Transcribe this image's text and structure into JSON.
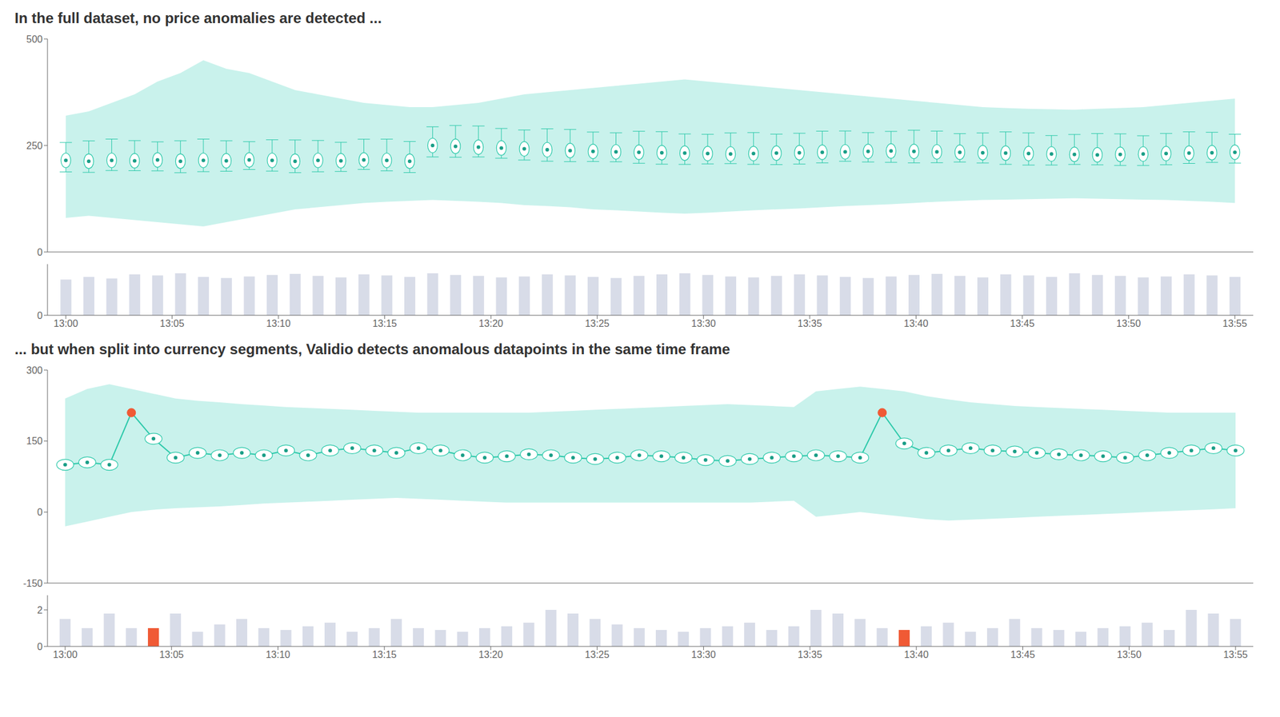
{
  "chart_data": [
    {
      "type": "box",
      "title": "In the full dataset, no price anomalies are detected ...",
      "tick_labels": "y",
      "x": [
        0,
        1,
        2,
        3,
        4,
        5,
        6,
        7,
        8,
        9,
        10,
        11,
        12,
        13,
        14,
        15,
        16,
        17,
        18,
        19,
        20,
        21,
        22,
        23,
        24,
        25,
        26,
        27,
        28,
        29,
        30,
        31,
        32,
        33,
        34,
        35,
        36,
        37,
        38,
        39,
        40,
        41,
        42,
        43,
        44,
        45,
        46,
        47,
        48,
        49,
        50,
        51
      ],
      "xlim": [
        -0.8,
        51.8
      ],
      "ylim": [
        0,
        500
      ],
      "yticks": [
        0,
        250,
        500
      ],
      "series": [
        {
          "type": "band",
          "color": "#b2ece4",
          "lower": [
            80,
            85,
            80,
            75,
            70,
            65,
            60,
            70,
            80,
            90,
            100,
            105,
            110,
            115,
            118,
            120,
            122,
            120,
            118,
            115,
            110,
            108,
            105,
            100,
            98,
            95,
            92,
            90,
            92,
            95,
            98,
            100,
            102,
            105,
            108,
            110,
            112,
            115,
            118,
            120,
            122,
            123,
            124,
            125,
            126,
            125,
            124,
            123,
            122,
            120,
            118,
            115
          ],
          "upper": [
            320,
            330,
            350,
            370,
            400,
            420,
            450,
            430,
            420,
            400,
            380,
            370,
            360,
            350,
            345,
            340,
            340,
            345,
            350,
            360,
            370,
            375,
            380,
            385,
            390,
            395,
            400,
            405,
            400,
            395,
            390,
            385,
            380,
            375,
            370,
            365,
            360,
            355,
            350,
            345,
            340,
            338,
            336,
            335,
            334,
            336,
            338,
            340,
            345,
            350,
            355,
            360
          ]
        },
        {
          "type": "box",
          "color": "#2dc9aa",
          "values": [
            215,
            213,
            215,
            214,
            216,
            213,
            215,
            214,
            216,
            215,
            213,
            215,
            214,
            216,
            215,
            213,
            250,
            248,
            246,
            244,
            242,
            240,
            238,
            236,
            235,
            234,
            233,
            232,
            231,
            230,
            231,
            232,
            233,
            234,
            235,
            236,
            237,
            236,
            235,
            234,
            233,
            232,
            231,
            230,
            229,
            228,
            229,
            230,
            231,
            232,
            233,
            234
          ],
          "whisker_low": [
            188,
            186.873,
            191.188,
            190.864,
            190.313,
            186.05,
            188.516,
            189.549,
            193.563,
            189.827,
            186.199,
            188.249,
            188.958,
            193.73,
            190.404,
            186.444,
            223.077,
            222.429,
            223.029,
            220.033,
            215.781,
            213.003,
            211.971,
            212.346,
            211.701,
            208.202,
            206.029,
            205.593,
            206.697,
            207.395,
            205.698,
            205.155,
            206.304,
            209.093,
            212.898,
            211.261,
            210.378,
            209.109,
            209.548,
            211.194,
            208.879,
            205.693,
            204.011,
            204.072,
            205.505,
            204.539,
            203.094,
            203.014,
            204.675,
            207.847,
            210.229,
            208.574
          ],
          "whisker_high": [
            257,
            260.739,
            264.997,
            261.404,
            258.467,
            261.054,
            264.969,
            261.05,
            258.932,
            263.349,
            262.915,
            261.679,
            257.395,
            264.623,
            264.833,
            259.293,
            293.852,
            296.873,
            295.725,
            289.891,
            286.303,
            289.101,
            287.591,
            281.477,
            279.747,
            283.304,
            282.43,
            277.05,
            276.18,
            279.482,
            280.245,
            276.613,
            278.604,
            283.634,
            284.034,
            280.167,
            283.014,
            285.761,
            283.8,
            277.714,
            279.411,
            281.861,
            279.542,
            273.255,
            275.793,
            277.934,
            277.262,
            272.792,
            278.159,
            281.98,
            280.961,
            276.326
          ]
        },
        {
          "type": "scatter",
          "marker": "dot",
          "color": "#1a9e87",
          "values": [
            215,
            213,
            215,
            214,
            216,
            213,
            215,
            214,
            216,
            215,
            213,
            215,
            214,
            216,
            215,
            213,
            250,
            248,
            246,
            244,
            242,
            240,
            238,
            236,
            235,
            234,
            233,
            232,
            231,
            230,
            231,
            232,
            233,
            234,
            235,
            236,
            237,
            236,
            235,
            234,
            233,
            232,
            231,
            230,
            229,
            228,
            229,
            230,
            231,
            232,
            233,
            234
          ]
        }
      ]
    },
    {
      "type": "bar",
      "color": "#d8dce8",
      "x": [
        0,
        1,
        2,
        3,
        4,
        5,
        6,
        7,
        8,
        9,
        10,
        11,
        12,
        13,
        14,
        15,
        16,
        17,
        18,
        19,
        20,
        21,
        22,
        23,
        24,
        25,
        26,
        27,
        28,
        29,
        30,
        31,
        32,
        33,
        34,
        35,
        36,
        37,
        38,
        39,
        40,
        41,
        42,
        43,
        44,
        45,
        46,
        47,
        48,
        49,
        50,
        51
      ],
      "values": [
        0.7,
        0.75,
        0.72,
        0.8,
        0.78,
        0.82,
        0.75,
        0.73,
        0.76,
        0.79,
        0.81,
        0.77,
        0.74,
        0.8,
        0.78,
        0.75,
        0.82,
        0.79,
        0.77,
        0.74,
        0.76,
        0.8,
        0.78,
        0.75,
        0.73,
        0.77,
        0.8,
        0.82,
        0.79,
        0.76,
        0.74,
        0.77,
        0.8,
        0.78,
        0.75,
        0.73,
        0.76,
        0.79,
        0.81,
        0.77,
        0.74,
        0.8,
        0.78,
        0.75,
        0.82,
        0.79,
        0.77,
        0.74,
        0.76,
        0.8,
        0.78,
        0.75
      ],
      "xlim": [
        -0.8,
        51.8
      ],
      "xticks": [
        {
          "value": 0,
          "label": "13:00"
        },
        {
          "value": 4.636364,
          "label": "13:05"
        },
        {
          "value": 9.272727,
          "label": "13:10"
        },
        {
          "value": 13.909091,
          "label": "13:15"
        },
        {
          "value": 18.545455,
          "label": "13:20"
        },
        {
          "value": 23.181818,
          "label": "13:25"
        },
        {
          "value": 27.818182,
          "label": "13:30"
        },
        {
          "value": 32.454545,
          "label": "13:35"
        },
        {
          "value": 37.090909,
          "label": "13:40"
        },
        {
          "value": 41.727273,
          "label": "13:45"
        },
        {
          "value": 46.363636,
          "label": "13:50"
        },
        {
          "value": 51,
          "label": "13:55"
        }
      ],
      "ylim": [
        0,
        1.0
      ],
      "yticks": [
        0
      ]
    },
    {
      "type": "line",
      "title": "... but when split into currency segments, Validio detects anomalous datapoints in the same time frame",
      "tick_labels": "y",
      "x": [
        0,
        1,
        2,
        3,
        4,
        5,
        6,
        7,
        8,
        9,
        10,
        11,
        12,
        13,
        14,
        15,
        16,
        17,
        18,
        19,
        20,
        21,
        22,
        23,
        24,
        25,
        26,
        27,
        28,
        29,
        30,
        31,
        32,
        33,
        34,
        35,
        36,
        37,
        38,
        39,
        40,
        41,
        42,
        43,
        44,
        45,
        46,
        47,
        48,
        49,
        50,
        51,
        52,
        53
      ],
      "xlim": [
        -0.8,
        53.8
      ],
      "ylim": [
        -150,
        300
      ],
      "yticks": [
        -150,
        0,
        150,
        300
      ],
      "series": [
        {
          "type": "band",
          "color": "#b2ece4",
          "lower": [
            -30,
            -20,
            -10,
            0,
            5,
            8,
            10,
            12,
            15,
            18,
            20,
            22,
            24,
            26,
            28,
            30,
            28,
            26,
            24,
            22,
            20,
            20,
            20,
            20,
            20,
            20,
            20,
            20,
            20,
            20,
            20,
            20,
            22,
            24,
            -10,
            -5,
            0,
            -5,
            -10,
            -15,
            -18,
            -16,
            -14,
            -12,
            -10,
            -8,
            -6,
            -4,
            -2,
            0,
            2,
            4,
            6,
            8
          ],
          "upper": [
            240,
            260,
            270,
            260,
            250,
            240,
            235,
            232,
            228,
            225,
            222,
            220,
            218,
            216,
            214,
            212,
            210,
            210,
            210,
            210,
            210,
            210,
            212,
            214,
            216,
            218,
            220,
            222,
            224,
            226,
            228,
            226,
            224,
            222,
            255,
            260,
            265,
            260,
            255,
            245,
            238,
            232,
            228,
            224,
            222,
            220,
            218,
            216,
            214,
            212,
            210,
            210,
            210,
            210
          ]
        },
        {
          "type": "line",
          "color": "#2dc9aa",
          "values": [
            100,
            105,
            100,
            210,
            155,
            115,
            125,
            120,
            125,
            120,
            130,
            120,
            130,
            135,
            130,
            125,
            135,
            130,
            120,
            115,
            118,
            122,
            120,
            115,
            112,
            115,
            120,
            118,
            115,
            110,
            108,
            112,
            115,
            118,
            120,
            118,
            115,
            210,
            145,
            125,
            130,
            135,
            130,
            128,
            125,
            122,
            120,
            118,
            115,
            120,
            125,
            130,
            135,
            130
          ]
        },
        {
          "type": "scatter",
          "marker": "ellipse",
          "color": "#1a9e87",
          "values": [
            100,
            105,
            100,
            null,
            155,
            115,
            125,
            120,
            125,
            120,
            130,
            120,
            130,
            135,
            130,
            125,
            135,
            130,
            120,
            115,
            118,
            122,
            120,
            115,
            112,
            115,
            120,
            118,
            115,
            110,
            108,
            112,
            115,
            118,
            120,
            118,
            115,
            null,
            145,
            125,
            130,
            135,
            130,
            128,
            125,
            122,
            120,
            118,
            115,
            120,
            125,
            130,
            135,
            130
          ]
        },
        {
          "type": "scatter",
          "marker": "circle",
          "color": "#f05a35",
          "values": [
            null,
            null,
            null,
            210,
            null,
            null,
            null,
            null,
            null,
            null,
            null,
            null,
            null,
            null,
            null,
            null,
            null,
            null,
            null,
            null,
            null,
            null,
            null,
            null,
            null,
            null,
            null,
            null,
            null,
            null,
            null,
            null,
            null,
            null,
            null,
            null,
            null,
            210,
            null,
            null,
            null,
            null,
            null,
            null,
            null,
            null,
            null,
            null,
            null,
            null,
            null,
            null,
            null,
            null
          ]
        }
      ]
    },
    {
      "type": "bar",
      "x": [
        0,
        1,
        2,
        3,
        4,
        5,
        6,
        7,
        8,
        9,
        10,
        11,
        12,
        13,
        14,
        15,
        16,
        17,
        18,
        19,
        20,
        21,
        22,
        23,
        24,
        25,
        26,
        27,
        28,
        29,
        30,
        31,
        32,
        33,
        34,
        35,
        36,
        37,
        38,
        39,
        40,
        41,
        42,
        43,
        44,
        45,
        46,
        47,
        48,
        49,
        50,
        51,
        52,
        53
      ],
      "values": [
        1.5,
        1.0,
        1.8,
        1.0,
        1.0,
        1.8,
        0.8,
        1.2,
        1.5,
        1.0,
        0.9,
        1.1,
        1.3,
        0.8,
        1.0,
        1.5,
        1.0,
        0.9,
        0.8,
        1.0,
        1.1,
        1.3,
        2.0,
        1.8,
        1.5,
        1.2,
        1.0,
        0.9,
        0.8,
        1.0,
        1.1,
        1.3,
        0.9,
        1.1,
        2.0,
        1.8,
        1.5,
        1.0,
        0.9,
        1.1,
        1.3,
        0.8,
        1.0,
        1.5,
        1.0,
        0.9,
        0.8,
        1.0,
        1.1,
        1.3,
        0.9,
        2.0,
        1.8,
        1.5
      ],
      "colors": [
        "#d8dce8",
        "#d8dce8",
        "#d8dce8",
        "#d8dce8",
        "#f05a35",
        "#d8dce8",
        "#d8dce8",
        "#d8dce8",
        "#d8dce8",
        "#d8dce8",
        "#d8dce8",
        "#d8dce8",
        "#d8dce8",
        "#d8dce8",
        "#d8dce8",
        "#d8dce8",
        "#d8dce8",
        "#d8dce8",
        "#d8dce8",
        "#d8dce8",
        "#d8dce8",
        "#d8dce8",
        "#d8dce8",
        "#d8dce8",
        "#d8dce8",
        "#d8dce8",
        "#d8dce8",
        "#d8dce8",
        "#d8dce8",
        "#d8dce8",
        "#d8dce8",
        "#d8dce8",
        "#d8dce8",
        "#d8dce8",
        "#d8dce8",
        "#d8dce8",
        "#d8dce8",
        "#d8dce8",
        "#f05a35",
        "#d8dce8",
        "#d8dce8",
        "#d8dce8",
        "#d8dce8",
        "#d8dce8",
        "#d8dce8",
        "#d8dce8",
        "#d8dce8",
        "#d8dce8",
        "#d8dce8",
        "#d8dce8",
        "#d8dce8",
        "#d8dce8",
        "#d8dce8",
        "#d8dce8"
      ],
      "xlim": [
        -0.8,
        53.8
      ],
      "xticks": [
        {
          "value": 0,
          "label": "13:00"
        },
        {
          "value": 4.818182,
          "label": "13:05"
        },
        {
          "value": 9.636364,
          "label": "13:10"
        },
        {
          "value": 14.454545,
          "label": "13:15"
        },
        {
          "value": 19.272727,
          "label": "13:20"
        },
        {
          "value": 24.090909,
          "label": "13:25"
        },
        {
          "value": 28.909091,
          "label": "13:30"
        },
        {
          "value": 33.727273,
          "label": "13:35"
        },
        {
          "value": 38.545455,
          "label": "13:40"
        },
        {
          "value": 43.363636,
          "label": "13:45"
        },
        {
          "value": 48.181818,
          "label": "13:50"
        },
        {
          "value": 53,
          "label": "13:55"
        }
      ],
      "ylim": [
        0,
        2.8
      ],
      "yticks": [
        0,
        2
      ]
    }
  ]
}
